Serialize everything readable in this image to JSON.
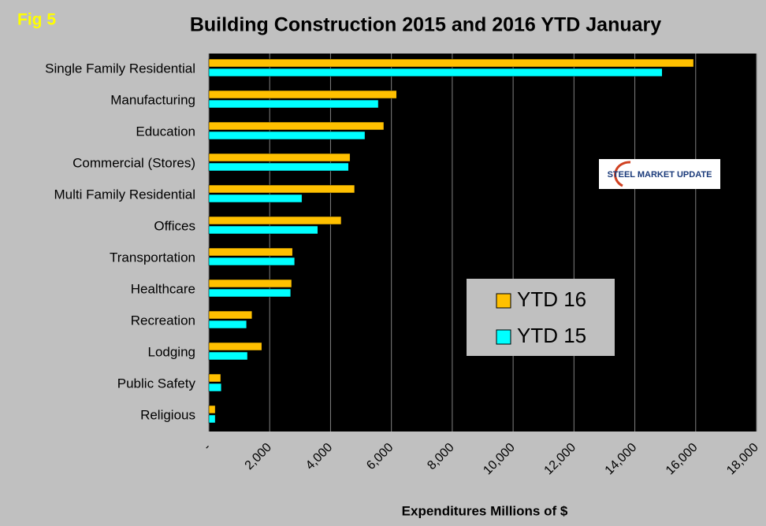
{
  "fig_label": "Fig 5",
  "logo": "STEEL MARKET UPDATE",
  "chart_data": {
    "type": "hbar",
    "title": "Building Construction 2015 and 2016  YTD January",
    "x_label": "Expenditures Millions of $",
    "categories": [
      "Single Family Residential",
      "Manufacturing",
      "Education",
      "Commercial (Stores)",
      "Multi Family Residential",
      "Offices",
      "Transportation",
      "Healthcare",
      "Recreation",
      "Lodging",
      "Public Safety",
      "Religious"
    ],
    "series": [
      {
        "name": "YTD 16",
        "color": "#ffc000",
        "values": [
          15930,
          6170,
          5750,
          4640,
          4790,
          4350,
          2750,
          2720,
          1420,
          1740,
          390,
          210
        ]
      },
      {
        "name": "YTD 15",
        "color": "#00ffff",
        "values": [
          14900,
          5570,
          5130,
          4590,
          3060,
          3580,
          2820,
          2690,
          1240,
          1270,
          410,
          210
        ]
      }
    ],
    "xlim": [
      0,
      18000
    ],
    "xticks": [
      {
        "value": 0,
        "label": "-"
      },
      {
        "value": 2000,
        "label": "2,000"
      },
      {
        "value": 4000,
        "label": "4,000"
      },
      {
        "value": 6000,
        "label": "6,000"
      },
      {
        "value": 8000,
        "label": "8,000"
      },
      {
        "value": 10000,
        "label": "10,000"
      },
      {
        "value": 12000,
        "label": "12,000"
      },
      {
        "value": 14000,
        "label": "14,000"
      },
      {
        "value": 16000,
        "label": "16,000"
      },
      {
        "value": 18000,
        "label": "18,000"
      }
    ],
    "grid": true
  }
}
